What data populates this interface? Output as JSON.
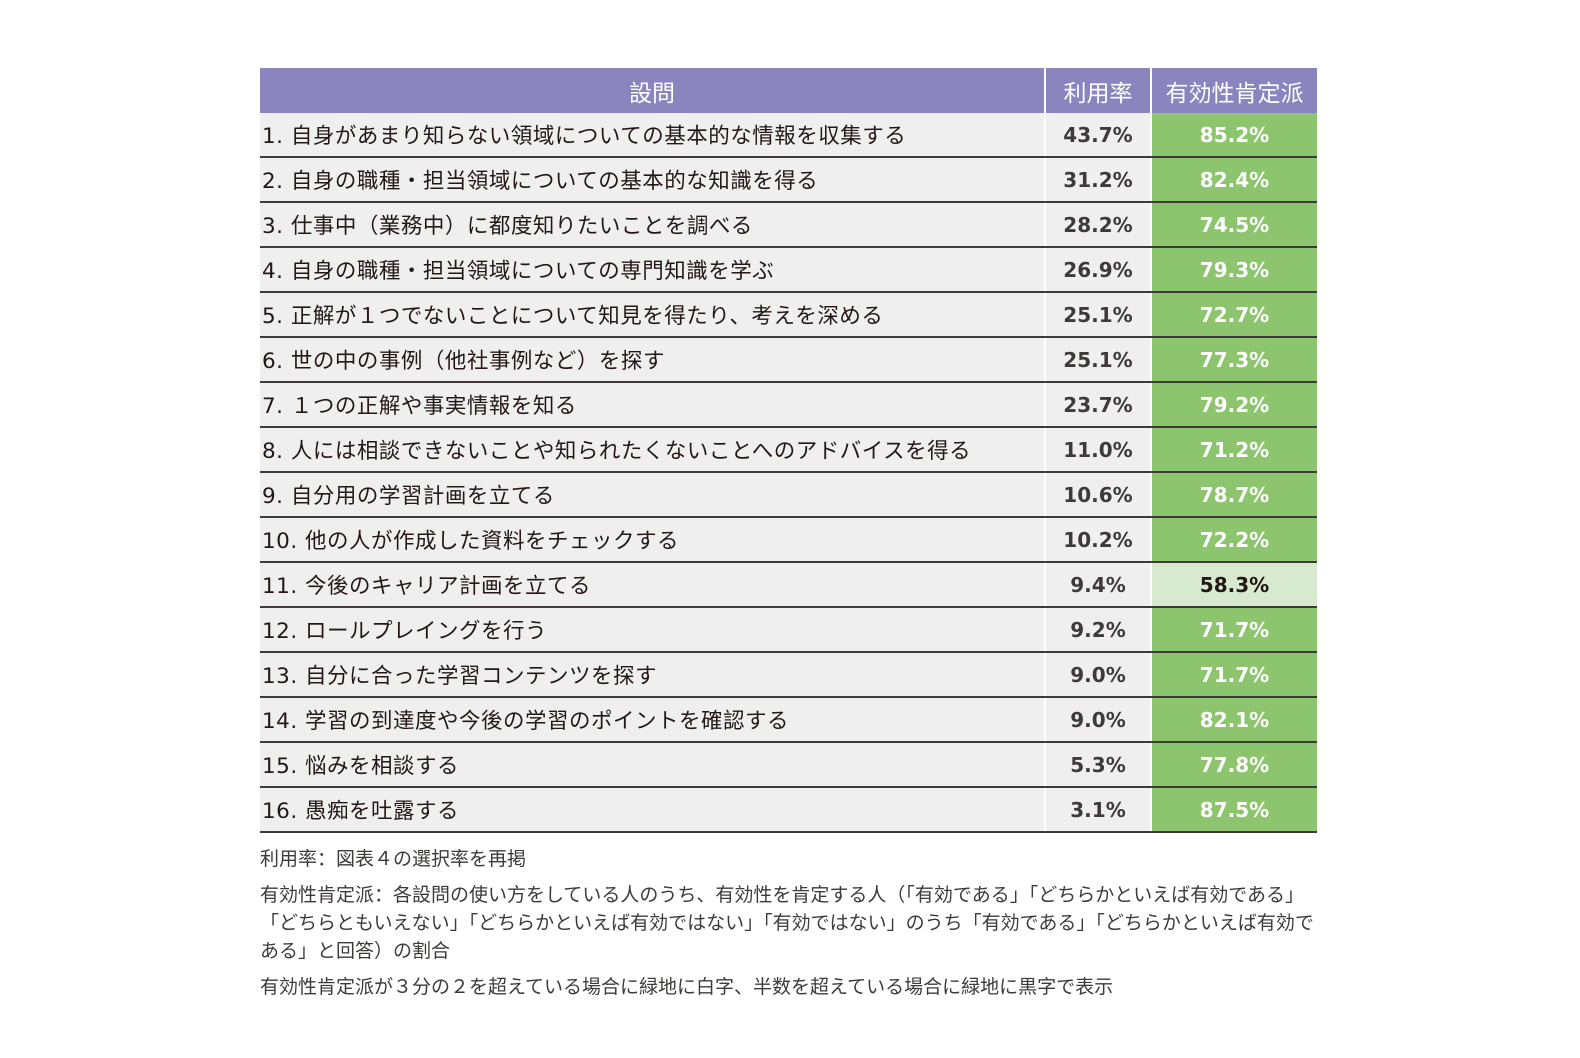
{
  "colors": {
    "header_bg": "#8b85bf",
    "header_text": "#ffffff",
    "row_bg": "#efeff0",
    "row_border": "#3e3a39",
    "effective_high_bg": "#8cc56d",
    "effective_high_text": "#ffffff",
    "effective_mid_bg": "#d7ead0",
    "effective_mid_text": "#231815"
  },
  "chart_data": {
    "type": "table",
    "columns": [
      "設問",
      "利用率",
      "有効性肯定派"
    ],
    "rows": [
      {
        "question": "1. 自身があまり知らない領域についての基本的な情報を収集する",
        "usage": "43.7%",
        "effective": "85.2%",
        "level": "high"
      },
      {
        "question": "2. 自身の職種・担当領域についての基本的な知識を得る",
        "usage": "31.2%",
        "effective": "82.4%",
        "level": "high"
      },
      {
        "question": "3. 仕事中（業務中）に都度知りたいことを調べる",
        "usage": "28.2%",
        "effective": "74.5%",
        "level": "high"
      },
      {
        "question": "4. 自身の職種・担当領域についての専門知識を学ぶ",
        "usage": "26.9%",
        "effective": "79.3%",
        "level": "high"
      },
      {
        "question": "5. 正解が１つでないことについて知見を得たり、考えを深める",
        "usage": "25.1%",
        "effective": "72.7%",
        "level": "high"
      },
      {
        "question": "6. 世の中の事例（他社事例など）を探す",
        "usage": "25.1%",
        "effective": "77.3%",
        "level": "high"
      },
      {
        "question": "7. １つの正解や事実情報を知る",
        "usage": "23.7%",
        "effective": "79.2%",
        "level": "high"
      },
      {
        "question": "8. 人には相談できないことや知られたくないことへのアドバイスを得る",
        "usage": "11.0%",
        "effective": "71.2%",
        "level": "high"
      },
      {
        "question": "9. 自分用の学習計画を立てる",
        "usage": "10.6%",
        "effective": "78.7%",
        "level": "high"
      },
      {
        "question": "10. 他の人が作成した資料をチェックする",
        "usage": "10.2%",
        "effective": "72.2%",
        "level": "high"
      },
      {
        "question": "11. 今後のキャリア計画を立てる",
        "usage": "9.4%",
        "effective": "58.3%",
        "level": "mid"
      },
      {
        "question": "12. ロールプレイングを行う",
        "usage": "9.2%",
        "effective": "71.7%",
        "level": "high"
      },
      {
        "question": "13. 自分に合った学習コンテンツを探す",
        "usage": "9.0%",
        "effective": "71.7%",
        "level": "high"
      },
      {
        "question": "14. 学習の到達度や今後の学習のポイントを確認する",
        "usage": "9.0%",
        "effective": "82.1%",
        "level": "high"
      },
      {
        "question": "15. 悩みを相談する",
        "usage": "5.3%",
        "effective": "77.8%",
        "level": "high"
      },
      {
        "question": "16. 愚痴を吐露する",
        "usage": "3.1%",
        "effective": "87.5%",
        "level": "high"
      }
    ]
  },
  "notes": [
    "利用率：図表４の選択率を再掲",
    "有効性肯定派：各設問の使い方をしている人のうち、有効性を肯定する人（「有効である」「どちらかといえば有効である」「どちらともいえない」「どちらかといえば有効ではない」「有効ではない」のうち「有効である」「どちらかといえば有効である」と回答）の割合",
    "有効性肯定派が３分の２を超えている場合に緑地に白字、半数を超えている場合に緑地に黒字で表示"
  ]
}
